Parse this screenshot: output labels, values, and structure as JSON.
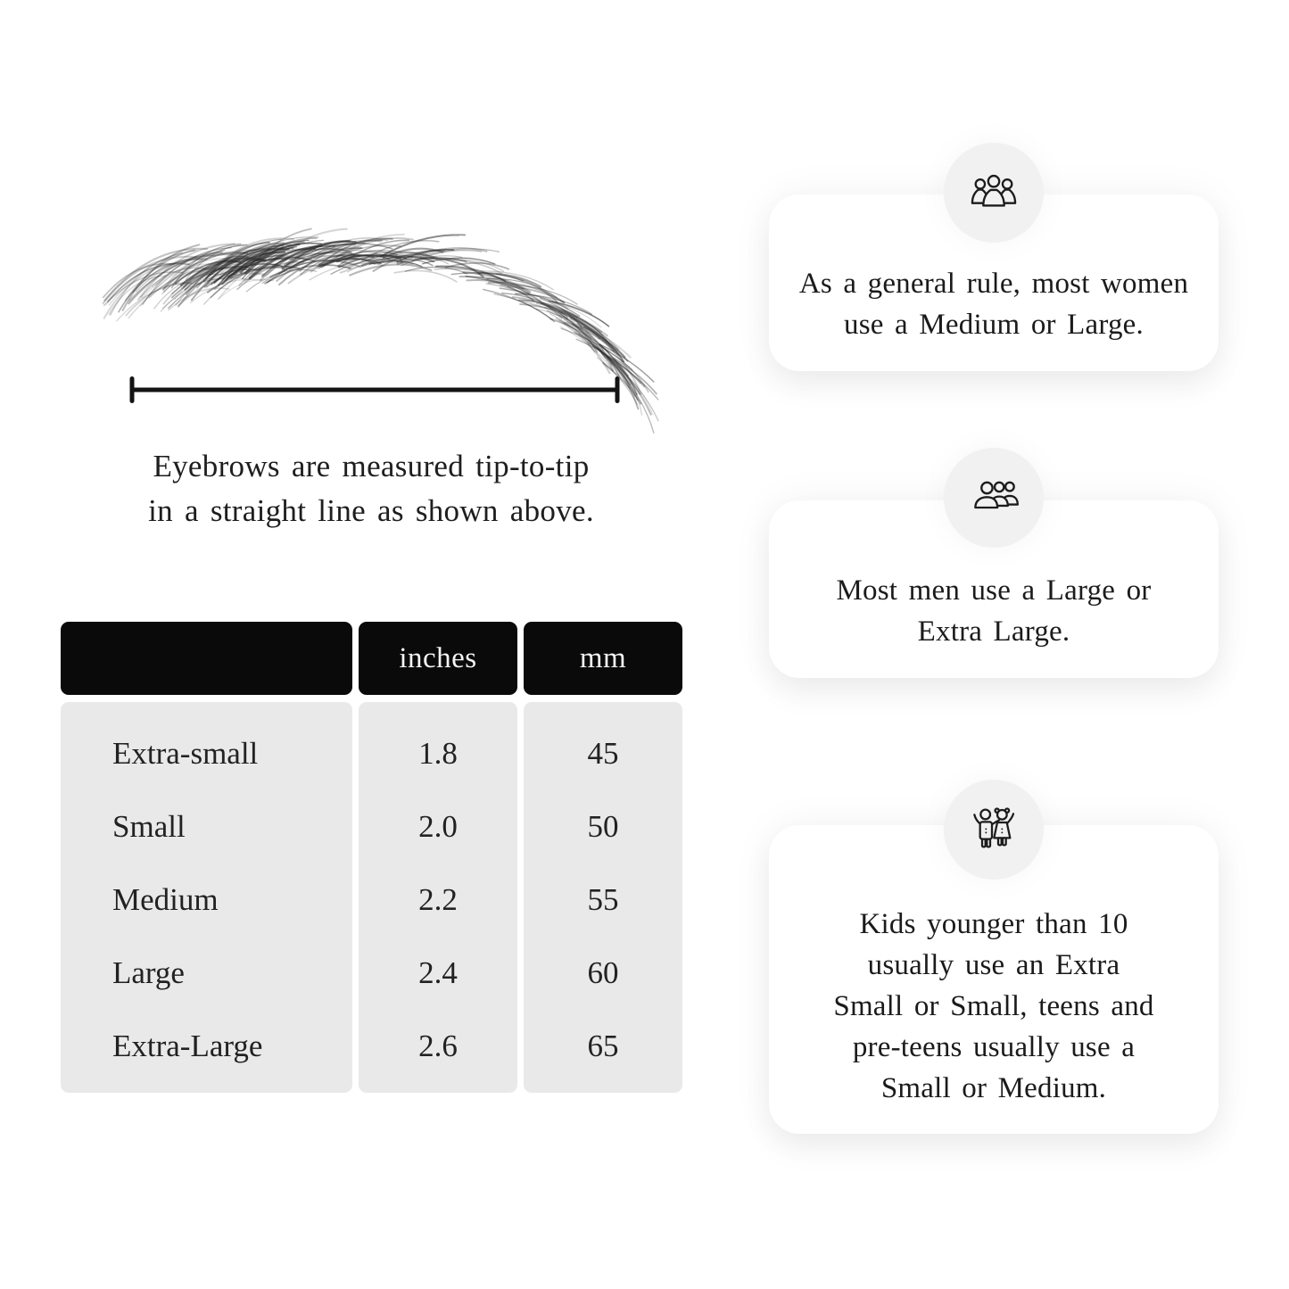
{
  "measurement": {
    "caption_lines": [
      "Eyebrows are measured tip-to-tip",
      "in a straight line as shown above."
    ]
  },
  "size_table": {
    "headers": {
      "size": "",
      "inches": "inches",
      "mm": "mm"
    },
    "rows": [
      {
        "label": "Extra-small",
        "inches": "1.8",
        "mm": "45"
      },
      {
        "label": "Small",
        "inches": "2.0",
        "mm": "50"
      },
      {
        "label": "Medium",
        "inches": "2.2",
        "mm": "55"
      },
      {
        "label": "Large",
        "inches": "2.4",
        "mm": "60"
      },
      {
        "label": "Extra-Large",
        "inches": "2.6",
        "mm": "65"
      }
    ]
  },
  "cards": [
    {
      "icon": "women-group-icon",
      "lines": [
        "As a general rule, most women",
        "use a Medium or Large."
      ]
    },
    {
      "icon": "men-group-icon",
      "lines": [
        "Most men use a Large or",
        "Extra Large."
      ]
    },
    {
      "icon": "kids-icon",
      "lines": [
        "Kids younger than 10",
        "usually use an Extra",
        "Small or Small, teens and",
        "pre-teens usually use a",
        "Small or Medium."
      ]
    }
  ],
  "colors": {
    "table_header_bg": "#0a0a0a",
    "table_header_text": "#f5f5f5",
    "table_body_bg": "#e9e9e9",
    "badge_bg": "#f1f1f2",
    "card_bg": "#ffffff",
    "text": "#1d1d1d",
    "line": "#141414"
  }
}
